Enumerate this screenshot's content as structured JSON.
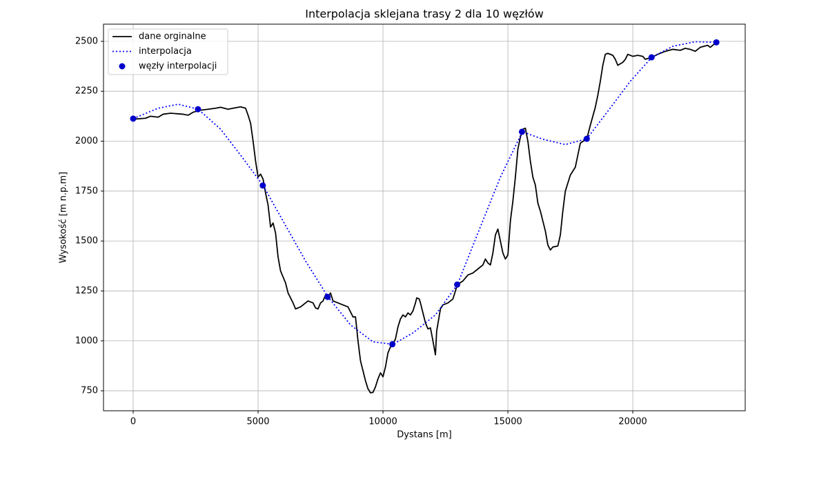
{
  "chart_data": {
    "type": "line",
    "title": "Interpolacja sklejana trasy 2 dla 10 węzłów",
    "xlabel": "Dystans [m]",
    "ylabel": "Wysokość [m n.p.m]",
    "xlim": [
      -1188,
      24500
    ],
    "ylim": [
      650,
      2586
    ],
    "xticks": [
      0,
      5000,
      10000,
      15000,
      20000
    ],
    "yticks": [
      750,
      1000,
      1250,
      1500,
      1750,
      2000,
      2250,
      2500
    ],
    "grid": true,
    "legend": "upper left",
    "series": [
      {
        "name": "dane orginalne",
        "color": "#000000",
        "type": "line",
        "linestyle": "solid",
        "x": [
          0,
          500,
          700,
          1000,
          1200,
          1500,
          2000,
          2200,
          2400,
          2700,
          3000,
          3300,
          3500,
          3800,
          4000,
          4300,
          4500,
          4600,
          4700,
          4800,
          4900,
          5000,
          5100,
          5200,
          5300,
          5400,
          5500,
          5600,
          5700,
          5800,
          5900,
          6000,
          6100,
          6200,
          6400,
          6500,
          6700,
          6800,
          6900,
          7000,
          7200,
          7300,
          7400,
          7500,
          7600,
          7700,
          7800,
          7900,
          8000,
          8200,
          8400,
          8600,
          8800,
          8900,
          9000,
          9100,
          9200,
          9300,
          9400,
          9500,
          9600,
          9700,
          9800,
          9900,
          10000,
          10100,
          10200,
          10300,
          10400,
          10500,
          10600,
          10700,
          10800,
          10900,
          11000,
          11100,
          11200,
          11300,
          11350,
          11450,
          11500,
          11600,
          11700,
          11800,
          11900,
          12000,
          12100,
          12150,
          12300,
          12400,
          12600,
          12800,
          12980,
          13200,
          13400,
          13600,
          13800,
          14000,
          14100,
          14200,
          14300,
          14400,
          14500,
          14600,
          14700,
          14800,
          14900,
          15000,
          15100,
          15200,
          15300,
          15400,
          15500,
          15600,
          15700,
          15800,
          15900,
          16000,
          16100,
          16200,
          16300,
          16400,
          16500,
          16600,
          16700,
          16800,
          17000,
          17100,
          17200,
          17300,
          17400,
          17500,
          17600,
          17700,
          17800,
          17900,
          18160,
          18300,
          18500,
          18600,
          18700,
          18800,
          18900,
          19000,
          19200,
          19300,
          19400,
          19600,
          19700,
          19800,
          20000,
          20200,
          20400,
          20500,
          20760,
          21000,
          21300,
          21600,
          21900,
          22100,
          22300,
          22500,
          22700,
          23000,
          23100,
          23350
        ],
        "values": [
          2110,
          2115,
          2125,
          2120,
          2135,
          2140,
          2135,
          2130,
          2145,
          2155,
          2160,
          2165,
          2170,
          2160,
          2165,
          2172,
          2165,
          2130,
          2090,
          2000,
          1900,
          1820,
          1835,
          1810,
          1740,
          1680,
          1570,
          1590,
          1540,
          1420,
          1350,
          1320,
          1290,
          1240,
          1190,
          1160,
          1170,
          1180,
          1190,
          1200,
          1190,
          1165,
          1160,
          1190,
          1200,
          1230,
          1220,
          1240,
          1200,
          1190,
          1180,
          1170,
          1120,
          1120,
          1000,
          900,
          850,
          800,
          760,
          740,
          742,
          770,
          810,
          840,
          820,
          870,
          940,
          970,
          983,
          1010,
          1070,
          1110,
          1130,
          1120,
          1140,
          1130,
          1150,
          1190,
          1215,
          1210,
          1190,
          1140,
          1090,
          1060,
          1065,
          1000,
          930,
          1050,
          1160,
          1180,
          1190,
          1210,
          1282,
          1300,
          1330,
          1340,
          1360,
          1380,
          1410,
          1390,
          1380,
          1440,
          1530,
          1560,
          1500,
          1440,
          1410,
          1430,
          1600,
          1700,
          1820,
          1960,
          2020,
          2060,
          2065,
          2000,
          1900,
          1820,
          1780,
          1690,
          1650,
          1600,
          1550,
          1480,
          1455,
          1470,
          1475,
          1530,
          1650,
          1750,
          1790,
          1830,
          1850,
          1870,
          1930,
          1990,
          2012,
          2080,
          2170,
          2230,
          2300,
          2380,
          2435,
          2440,
          2430,
          2410,
          2380,
          2395,
          2410,
          2435,
          2425,
          2430,
          2425,
          2410,
          2420,
          2435,
          2450,
          2460,
          2455,
          2465,
          2460,
          2450,
          2470,
          2480,
          2470,
          2495
        ]
      },
      {
        "name": "interpolacja",
        "color": "#0000ff",
        "type": "line",
        "linestyle": "dotted",
        "x": [
          0,
          1000,
          1800,
          2600,
          3500,
          4300,
          5200,
          6000,
          6900,
          7800,
          8700,
          9600,
          10400,
          11200,
          12100,
          12980,
          13800,
          14700,
          15580,
          16400,
          17300,
          18160,
          19000,
          19900,
          20760,
          21600,
          22500,
          23350
        ],
        "values": [
          2113,
          2165,
          2185,
          2160,
          2060,
          1930,
          1778,
          1600,
          1400,
          1220,
          1080,
          995,
          983,
          1040,
          1130,
          1282,
          1540,
          1820,
          2047,
          2010,
          1983,
          2012,
          2150,
          2300,
          2420,
          2475,
          2498,
          2495
        ]
      },
      {
        "name": "węzły interpolacji",
        "color": "#0000cc",
        "type": "scatter",
        "x": [
          0,
          2594,
          5188,
          7782,
          10376,
          12970,
          15564,
          18158,
          20752,
          23346
        ],
        "values": [
          2113,
          2160,
          1778,
          1220,
          983,
          1282,
          2047,
          2012,
          2420,
          2495
        ]
      }
    ]
  }
}
